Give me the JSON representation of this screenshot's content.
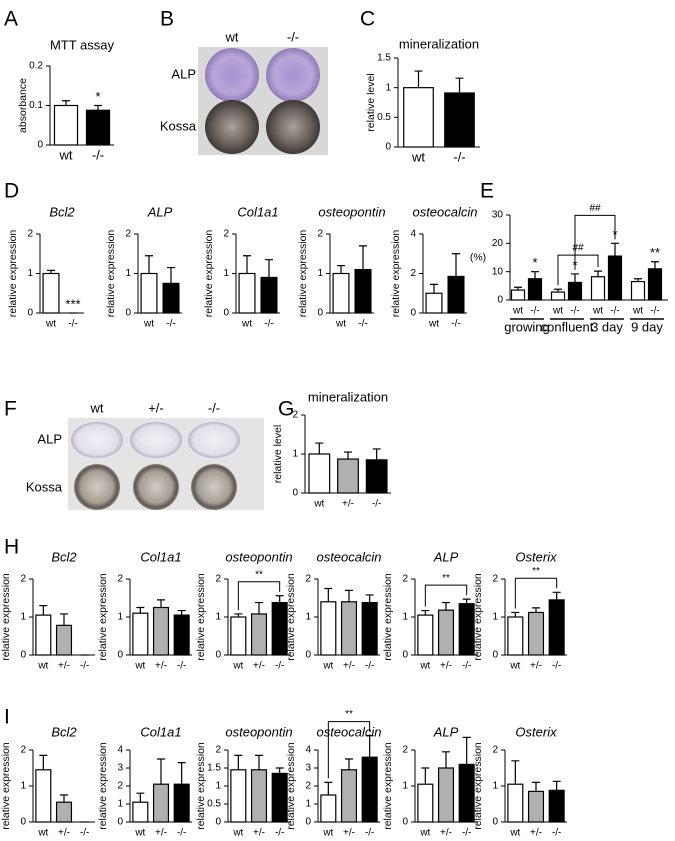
{
  "panel_labels": [
    "A",
    "B",
    "C",
    "D",
    "E",
    "F",
    "G",
    "H",
    "I"
  ],
  "images": [
    {
      "columns": [
        "wt",
        "-/-"
      ],
      "rows": [
        "ALP",
        "Kossa"
      ]
    },
    {
      "columns": [
        "wt",
        "+/-",
        "-/-"
      ],
      "rows": [
        "ALP",
        "Kossa"
      ]
    }
  ],
  "chart_data": [
    {
      "type": "bar",
      "title": "MTT assay",
      "y_label": "absorbance",
      "categories": [
        "wt",
        "-/-"
      ],
      "values": [
        0.1,
        0.088
      ],
      "errors": [
        0.012,
        0.012
      ],
      "colors": [
        "#ffffff",
        "#000000"
      ],
      "ylim": [
        0,
        0.2
      ],
      "yticks": [
        0,
        0.1,
        0.2
      ],
      "annotations": [
        null,
        "*"
      ]
    },
    {
      "type": "bar",
      "title": "mineralization",
      "y_label": "relative level",
      "categories": [
        "wt",
        "-/-"
      ],
      "values": [
        1.0,
        0.91
      ],
      "errors": [
        0.28,
        0.25
      ],
      "colors": [
        "#ffffff",
        "#000000"
      ],
      "ylim": [
        0,
        1.5
      ],
      "yticks": [
        0,
        0.5,
        1,
        1.5
      ]
    },
    {
      "type": "bar",
      "title": "Bcl2",
      "title_italic": true,
      "y_label": "relative expression",
      "categories": [
        "wt",
        "-/-"
      ],
      "values": [
        1.0,
        0
      ],
      "errors": [
        0.08,
        0
      ],
      "colors": [
        "#ffffff",
        "#000000"
      ],
      "ylim": [
        0,
        2
      ],
      "yticks": [
        0,
        1,
        2
      ],
      "annotations": [
        null,
        "***"
      ]
    },
    {
      "type": "bar",
      "title": "ALP",
      "title_italic": true,
      "y_label": "relative expression",
      "categories": [
        "wt",
        "-/-"
      ],
      "values": [
        1.0,
        0.75
      ],
      "errors": [
        0.45,
        0.4
      ],
      "colors": [
        "#ffffff",
        "#000000"
      ],
      "ylim": [
        0,
        2
      ],
      "yticks": [
        0,
        1,
        2
      ]
    },
    {
      "type": "bar",
      "title": "Col1a1",
      "title_italic": true,
      "y_label": "relative expression",
      "categories": [
        "wt",
        "-/-"
      ],
      "values": [
        1.0,
        0.9
      ],
      "errors": [
        0.45,
        0.45
      ],
      "colors": [
        "#ffffff",
        "#000000"
      ],
      "ylim": [
        0,
        2
      ],
      "yticks": [
        0,
        1,
        2
      ]
    },
    {
      "type": "bar",
      "title": "osteopontin",
      "title_italic": true,
      "y_label": "relative expression",
      "categories": [
        "wt",
        "-/-"
      ],
      "values": [
        1.0,
        1.1
      ],
      "errors": [
        0.2,
        0.6
      ],
      "colors": [
        "#ffffff",
        "#000000"
      ],
      "ylim": [
        0,
        2
      ],
      "yticks": [
        0,
        1,
        2
      ]
    },
    {
      "type": "bar",
      "title": "osteocalcin",
      "title_italic": true,
      "y_label": "relative expression",
      "categories": [
        "wt",
        "-/-"
      ],
      "values": [
        1.0,
        1.85
      ],
      "errors": [
        0.45,
        1.15
      ],
      "colors": [
        "#ffffff",
        "#000000"
      ],
      "ylim": [
        0,
        4
      ],
      "yticks": [
        0,
        2,
        4
      ]
    },
    {
      "type": "bar",
      "y_label": "(%)",
      "categories": [
        "wt",
        "-/-",
        "wt",
        "-/-",
        "wt",
        "-/-",
        "wt",
        "-/-"
      ],
      "groups": [
        "growing",
        "confluent",
        "3 day",
        "9 day"
      ],
      "values": [
        3.5,
        7.5,
        2.8,
        6.2,
        8.2,
        15.5,
        6.5,
        11
      ],
      "errors": [
        1,
        2.5,
        1,
        3,
        2,
        4.5,
        1,
        2.5
      ],
      "colors": [
        "#ffffff",
        "#000000",
        "#ffffff",
        "#000000",
        "#ffffff",
        "#000000",
        "#ffffff",
        "#000000"
      ],
      "ylim": [
        0,
        30
      ],
      "yticks": [
        0,
        10,
        20,
        30
      ],
      "annotations": [
        null,
        "*",
        null,
        "*",
        null,
        "*",
        null,
        "**"
      ],
      "bracket_labels": [
        "##",
        "##"
      ]
    },
    {
      "type": "bar",
      "title": "mineralization",
      "y_label": "relative level",
      "categories": [
        "wt",
        "+/-",
        "-/-"
      ],
      "values": [
        1.0,
        0.87,
        0.85
      ],
      "errors": [
        0.28,
        0.18,
        0.28
      ],
      "colors": [
        "#ffffff",
        "#b0b0b0",
        "#000000"
      ],
      "ylim": [
        0,
        2
      ],
      "yticks": [
        0,
        1,
        2
      ]
    },
    {
      "type": "bar",
      "title": "Bcl2",
      "title_italic": true,
      "y_label": "relative expression",
      "categories": [
        "wt",
        "+/-",
        "-/-"
      ],
      "values": [
        1.05,
        0.78,
        0
      ],
      "errors": [
        0.25,
        0.3,
        0
      ],
      "colors": [
        "#ffffff",
        "#b0b0b0",
        "#000000"
      ],
      "ylim": [
        0,
        2
      ],
      "yticks": [
        0,
        1,
        2
      ]
    },
    {
      "type": "bar",
      "title": "Col1a1",
      "title_italic": true,
      "y_label": "relative expression",
      "categories": [
        "wt",
        "+/-",
        "-/-"
      ],
      "values": [
        1.1,
        1.25,
        1.05
      ],
      "errors": [
        0.15,
        0.2,
        0.12
      ],
      "colors": [
        "#ffffff",
        "#b0b0b0",
        "#000000"
      ],
      "ylim": [
        0,
        2
      ],
      "yticks": [
        0,
        1,
        2
      ]
    },
    {
      "type": "bar",
      "title": "osteopontin",
      "title_italic": true,
      "y_label": "relative expression",
      "categories": [
        "wt",
        "+/-",
        "-/-"
      ],
      "values": [
        1.0,
        1.08,
        1.38
      ],
      "errors": [
        0.08,
        0.3,
        0.18
      ],
      "colors": [
        "#ffffff",
        "#b0b0b0",
        "#000000"
      ],
      "ylim": [
        0,
        2
      ],
      "yticks": [
        0,
        1,
        2
      ],
      "bracket_labels": [
        "**"
      ]
    },
    {
      "type": "bar",
      "title": "osteocalcin",
      "title_italic": true,
      "y_label": "relative expression",
      "categories": [
        "wt",
        "+/-",
        "-/-"
      ],
      "values": [
        1.4,
        1.4,
        1.38
      ],
      "errors": [
        0.35,
        0.3,
        0.2
      ],
      "colors": [
        "#ffffff",
        "#b0b0b0",
        "#000000"
      ],
      "ylim": [
        0,
        2
      ],
      "yticks": [
        0,
        1,
        2
      ]
    },
    {
      "type": "bar",
      "title": "ALP",
      "title_italic": true,
      "y_label": "relative expression",
      "categories": [
        "wt",
        "+/-",
        "-/-"
      ],
      "values": [
        1.05,
        1.18,
        1.35
      ],
      "errors": [
        0.12,
        0.2,
        0.12
      ],
      "colors": [
        "#ffffff",
        "#b0b0b0",
        "#000000"
      ],
      "ylim": [
        0,
        2
      ],
      "yticks": [
        0,
        1,
        2
      ],
      "bracket_labels": [
        "**"
      ]
    },
    {
      "type": "bar",
      "title": "Osterix",
      "title_italic": true,
      "y_label": "relative expression",
      "categories": [
        "wt",
        "+/-",
        "-/-"
      ],
      "values": [
        1.0,
        1.12,
        1.45
      ],
      "errors": [
        0.12,
        0.12,
        0.2
      ],
      "colors": [
        "#ffffff",
        "#b0b0b0",
        "#000000"
      ],
      "ylim": [
        0,
        2
      ],
      "yticks": [
        0,
        1,
        2
      ],
      "bracket_labels": [
        "**"
      ]
    },
    {
      "type": "bar",
      "title": "Bcl2",
      "title_italic": true,
      "y_label": "relative expression",
      "categories": [
        "wt",
        "+/-",
        "-/-"
      ],
      "values": [
        1.45,
        0.55,
        0
      ],
      "errors": [
        0.4,
        0.2,
        0
      ],
      "colors": [
        "#ffffff",
        "#b0b0b0",
        "#000000"
      ],
      "ylim": [
        0,
        2
      ],
      "yticks": [
        0,
        1,
        2
      ]
    },
    {
      "type": "bar",
      "title": "Col1a1",
      "title_italic": true,
      "y_label": "relative expression",
      "categories": [
        "wt",
        "+/-",
        "-/-"
      ],
      "values": [
        1.1,
        2.1,
        2.1
      ],
      "errors": [
        0.5,
        1.4,
        1.2
      ],
      "colors": [
        "#ffffff",
        "#b0b0b0",
        "#000000"
      ],
      "ylim": [
        0,
        4
      ],
      "yticks": [
        0,
        1,
        2,
        3,
        4
      ]
    },
    {
      "type": "bar",
      "title": "osteopontin",
      "title_italic": true,
      "y_label": "relative expression",
      "categories": [
        "wt",
        "+/-",
        "-/-"
      ],
      "values": [
        1.45,
        1.45,
        1.35
      ],
      "errors": [
        0.4,
        0.4,
        0.15
      ],
      "colors": [
        "#ffffff",
        "#b0b0b0",
        "#000000"
      ],
      "ylim": [
        0,
        2
      ],
      "yticks": [
        0,
        0.5,
        1,
        1.5,
        2
      ]
    },
    {
      "type": "bar",
      "title": "osteocalcin",
      "title_italic": true,
      "y_label": "relative expression",
      "categories": [
        "wt",
        "+/-",
        "-/-"
      ],
      "values": [
        1.5,
        2.9,
        3.6
      ],
      "errors": [
        0.7,
        0.6,
        1.2
      ],
      "colors": [
        "#ffffff",
        "#b0b0b0",
        "#000000"
      ],
      "ylim": [
        0,
        4
      ],
      "yticks": [
        0,
        1,
        2,
        3,
        4
      ],
      "bracket_labels": [
        "**"
      ]
    },
    {
      "type": "bar",
      "title": "ALP",
      "title_italic": true,
      "y_label": "relative expression",
      "categories": [
        "wt",
        "+/-",
        "-/-"
      ],
      "values": [
        1.05,
        1.5,
        1.6
      ],
      "errors": [
        0.45,
        0.45,
        0.75
      ],
      "colors": [
        "#ffffff",
        "#b0b0b0",
        "#000000"
      ],
      "ylim": [
        0,
        2
      ],
      "yticks": [
        0,
        1,
        2
      ]
    },
    {
      "type": "bar",
      "title": "Osterix",
      "title_italic": true,
      "y_label": "relative expression",
      "categories": [
        "wt",
        "+/-",
        "-/-"
      ],
      "values": [
        1.05,
        0.85,
        0.88
      ],
      "errors": [
        0.65,
        0.25,
        0.25
      ],
      "colors": [
        "#ffffff",
        "#b0b0b0",
        "#000000"
      ],
      "ylim": [
        0,
        2
      ],
      "yticks": [
        0,
        1,
        2
      ]
    }
  ]
}
